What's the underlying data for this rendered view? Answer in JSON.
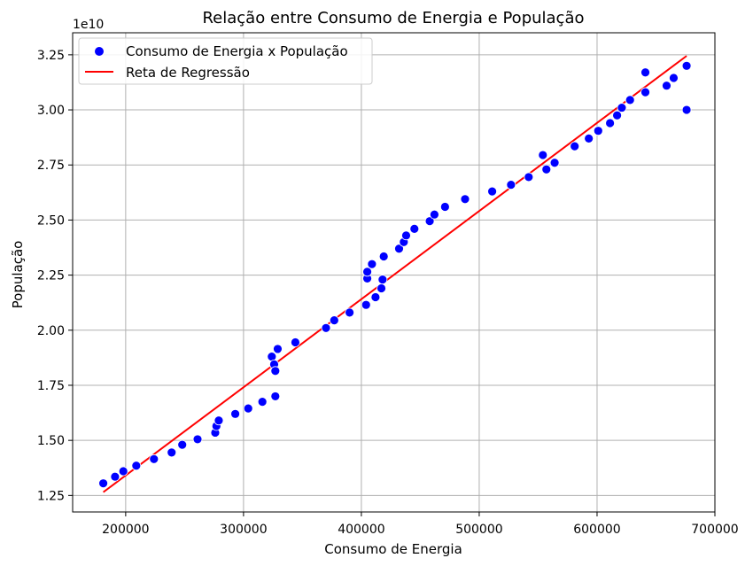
{
  "chart_data": {
    "type": "scatter",
    "title": "Relação entre Consumo de Energia e População",
    "xlabel": "Consumo de Energia",
    "ylabel": "População",
    "y_offset_label": "1e10",
    "y_multiplier": 10000000000,
    "xlim": [
      155000,
      700000
    ],
    "ylim": [
      1.175,
      3.35
    ],
    "x_ticks": [
      200000,
      300000,
      400000,
      500000,
      600000,
      700000
    ],
    "x_tick_labels": [
      "200000",
      "300000",
      "400000",
      "500000",
      "600000",
      "700000"
    ],
    "y_ticks": [
      1.25,
      1.5,
      1.75,
      2.0,
      2.25,
      2.5,
      2.75,
      3.0,
      3.25
    ],
    "y_tick_labels": [
      "1.25",
      "1.50",
      "1.75",
      "2.00",
      "2.25",
      "2.50",
      "2.75",
      "3.00",
      "3.25"
    ],
    "grid": true,
    "legend_position": "upper-left",
    "series": [
      {
        "name": "Consumo de Energia x População",
        "type": "scatter",
        "color": "#0000ff",
        "x": [
          181000,
          191000,
          198000,
          209000,
          224000,
          239000,
          248000,
          261000,
          276000,
          277000,
          279000,
          293000,
          304000,
          316000,
          324000,
          326000,
          327000,
          327000,
          329000,
          344000,
          370000,
          377000,
          390000,
          404000,
          405000,
          405000,
          409000,
          412000,
          417000,
          418000,
          419000,
          432000,
          436000,
          438000,
          445000,
          458000,
          462000,
          471000,
          488000,
          511000,
          527000,
          542000,
          554000,
          557000,
          564000,
          581000,
          593000,
          601000,
          611000,
          617000,
          621000,
          628000,
          641000,
          641000,
          659000,
          665000,
          676000,
          676000
        ],
        "y": [
          1.305,
          1.335,
          1.36,
          1.385,
          1.415,
          1.445,
          1.48,
          1.505,
          1.535,
          1.565,
          1.59,
          1.62,
          1.645,
          1.675,
          1.88,
          1.845,
          1.7,
          1.815,
          1.915,
          1.945,
          2.01,
          2.045,
          2.08,
          2.115,
          2.235,
          2.265,
          2.3,
          2.15,
          2.19,
          2.23,
          2.335,
          2.37,
          2.4,
          2.43,
          2.46,
          2.495,
          2.525,
          2.56,
          2.595,
          2.63,
          2.66,
          2.695,
          2.795,
          2.73,
          2.76,
          2.835,
          2.87,
          2.905,
          2.94,
          2.975,
          3.01,
          3.045,
          3.08,
          3.17,
          3.11,
          3.145,
          3.2,
          3.0
        ]
      },
      {
        "name": "Reta de Regressão",
        "type": "line",
        "color": "#ff0000",
        "x": [
          181000,
          676000
        ],
        "y": [
          1.265,
          3.245
        ]
      }
    ]
  }
}
